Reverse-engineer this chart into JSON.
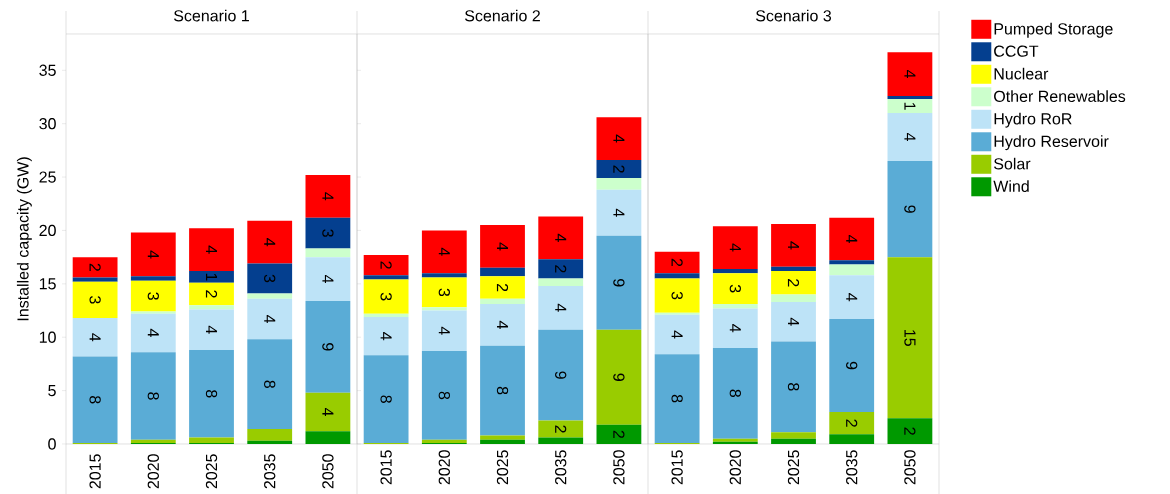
{
  "chart_data": [
    {
      "type": "bar",
      "stacked": true,
      "title": "Scenario 1",
      "ylabel": "Installed capacity (GW)",
      "categories": [
        "2015",
        "2020",
        "2025",
        "2035",
        "2050"
      ],
      "ylim": [
        0,
        38.4
      ],
      "yticks": [
        0,
        5,
        10,
        15,
        20,
        25,
        30,
        35
      ],
      "series": [
        {
          "color": "#009900",
          "values": [
            0,
            0.1,
            0.1,
            0.3,
            1.2
          ],
          "value_labels": [
            null,
            null,
            null,
            null,
            null
          ]
        },
        {
          "color": "#99cc00",
          "values": [
            0.1,
            0.3,
            0.5,
            1.1,
            3.6
          ],
          "value_labels": [
            null,
            null,
            null,
            null,
            "4"
          ]
        },
        {
          "color": "#5aacd6",
          "values": [
            8.1,
            8.2,
            8.2,
            8.4,
            8.6
          ],
          "value_labels": [
            "8",
            "8",
            "8",
            "8",
            "9"
          ]
        },
        {
          "color": "#bde3f7",
          "values": [
            3.6,
            3.6,
            3.8,
            3.8,
            4.1
          ],
          "value_labels": [
            "4",
            "4",
            "4",
            "4",
            "4"
          ]
        },
        {
          "color": "#ccffcc",
          "values": [
            null,
            0.2,
            0.4,
            0.5,
            0.8
          ],
          "value_labels": [
            null,
            null,
            null,
            null,
            null
          ]
        },
        {
          "color": "#ffff00",
          "values": [
            3.4,
            2.9,
            2.1,
            0,
            0
          ],
          "value_labels": [
            "3",
            "3",
            "2",
            null,
            null
          ]
        },
        {
          "color": "#043f8f",
          "values": [
            0.4,
            0.4,
            1.1,
            2.8,
            2.9
          ],
          "value_labels": [
            null,
            null,
            "1",
            "3",
            "3"
          ]
        },
        {
          "color": "#ff0000",
          "values": [
            1.9,
            4.1,
            4.0,
            4.0,
            4.0
          ],
          "value_labels": [
            "2",
            "4",
            "4",
            "4",
            "4"
          ]
        }
      ]
    },
    {
      "type": "bar",
      "stacked": true,
      "title": "Scenario 2",
      "categories": [
        "2015",
        "2020",
        "2025",
        "2035",
        "2050"
      ],
      "ylim": [
        0,
        38.4
      ],
      "yticks": [
        0,
        5,
        10,
        15,
        20,
        25,
        30,
        35
      ],
      "tick_labels": "x",
      "series": [
        {
          "color": "#009900",
          "values": [
            0,
            0.1,
            0.4,
            0.6,
            1.8
          ],
          "value_labels": [
            null,
            null,
            null,
            null,
            "2"
          ]
        },
        {
          "color": "#99cc00",
          "values": [
            0.1,
            0.3,
            0.4,
            1.6,
            8.9
          ],
          "value_labels": [
            null,
            null,
            null,
            "2",
            "9"
          ]
        },
        {
          "color": "#5aacd6",
          "values": [
            8.2,
            8.3,
            8.4,
            8.5,
            8.8
          ],
          "value_labels": [
            "8",
            "8",
            "8",
            "9",
            "9"
          ]
        },
        {
          "color": "#bde3f7",
          "values": [
            3.6,
            3.8,
            3.9,
            4.1,
            4.3
          ],
          "value_labels": [
            "4",
            "4",
            "4",
            "4",
            "4"
          ]
        },
        {
          "color": "#ccffcc",
          "values": [
            0.3,
            0.3,
            0.5,
            0.7,
            1.1
          ],
          "value_labels": [
            null,
            null,
            null,
            null,
            null
          ]
        },
        {
          "color": "#ffff00",
          "values": [
            3.2,
            2.8,
            2.1,
            0,
            0
          ],
          "value_labels": [
            "3",
            "3",
            "2",
            null,
            null
          ]
        },
        {
          "color": "#043f8f",
          "values": [
            0.4,
            0.4,
            0.8,
            1.8,
            1.7
          ],
          "value_labels": [
            null,
            null,
            null,
            "2",
            "2"
          ]
        },
        {
          "color": "#ff0000",
          "values": [
            1.9,
            4.0,
            4.0,
            4.0,
            4.0
          ],
          "value_labels": [
            "2",
            "4",
            "4",
            "4",
            "4"
          ]
        }
      ]
    },
    {
      "type": "bar",
      "stacked": true,
      "title": "Scenario 3",
      "categories": [
        "2015",
        "2020",
        "2025",
        "2035",
        "2050"
      ],
      "ylim": [
        0,
        38.4
      ],
      "yticks": [
        0,
        5,
        10,
        15,
        20,
        25,
        30,
        35
      ],
      "tick_labels": "x",
      "legend": "right",
      "series": [
        {
          "name": "Wind",
          "color": "#009900",
          "values": [
            0,
            0.2,
            0.5,
            0.9,
            2.4
          ],
          "value_labels": [
            null,
            null,
            null,
            null,
            "2"
          ]
        },
        {
          "name": "Solar",
          "color": "#99cc00",
          "values": [
            0.1,
            0.3,
            0.6,
            2.1,
            15.1
          ],
          "value_labels": [
            null,
            null,
            null,
            "2",
            "15"
          ]
        },
        {
          "name": "Hydro Reservoir",
          "color": "#5aacd6",
          "values": [
            8.3,
            8.5,
            8.5,
            8.7,
            9.0
          ],
          "value_labels": [
            "8",
            "8",
            "8",
            "9",
            "9"
          ]
        },
        {
          "name": "Hydro RoR",
          "color": "#bde3f7",
          "values": [
            3.7,
            3.7,
            3.7,
            4.1,
            4.5
          ],
          "value_labels": [
            "4",
            "4",
            "4",
            "4",
            "4"
          ]
        },
        {
          "name": "Other Renewables",
          "color": "#ccffcc",
          "values": [
            0.2,
            0.4,
            0.7,
            1.0,
            1.3
          ],
          "value_labels": [
            null,
            null,
            null,
            null,
            "1"
          ]
        },
        {
          "name": "Nuclear",
          "color": "#ffff00",
          "values": [
            3.2,
            2.9,
            2.2,
            0,
            0
          ],
          "value_labels": [
            "3",
            "3",
            "2",
            null,
            null
          ]
        },
        {
          "name": "CCGT",
          "color": "#043f8f",
          "values": [
            0.5,
            0.4,
            0.4,
            0.4,
            0.3
          ],
          "value_labels": [
            null,
            null,
            null,
            null,
            null
          ]
        },
        {
          "name": "Pumped Storage",
          "color": "#ff0000",
          "values": [
            2.0,
            4.0,
            4.0,
            4.0,
            4.1
          ],
          "value_labels": [
            "2",
            "4",
            "4",
            "4",
            "4"
          ]
        }
      ]
    }
  ]
}
